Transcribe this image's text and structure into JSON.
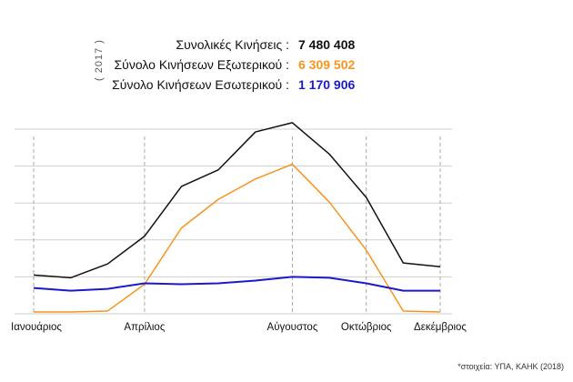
{
  "year_label": "( 2017 )",
  "stats": [
    {
      "label": "Συνολικές Κινήσεις :",
      "value": "7 480 408",
      "color": "#111111"
    },
    {
      "label": "Σύνολο Κινήσεων Εξωτερικού :",
      "value": "6 309 502",
      "color": "#f7941d"
    },
    {
      "label": "Σύνολο Κινήσεων Εσωτερικού :",
      "value": "1 170 906",
      "color": "#1a1acc"
    }
  ],
  "source": "*στοιχεία: ΥΠΑ, ΚΑΗΚ (2018)",
  "chart_data": {
    "type": "line",
    "x": [
      1,
      2,
      3,
      4,
      5,
      6,
      7,
      8,
      9,
      10,
      11,
      12
    ],
    "tick_labels": [
      {
        "x": 1,
        "label": "Ιανουάριος"
      },
      {
        "x": 4,
        "label": "Απρίλιος"
      },
      {
        "x": 8,
        "label": "Αύγουστος"
      },
      {
        "x": 10,
        "label": "Οκτώβριος"
      },
      {
        "x": 12,
        "label": "Δεκέμβριος"
      }
    ],
    "ylim": [
      0,
      1000000
    ],
    "grid": true,
    "series": [
      {
        "color": "#111111",
        "values": [
          210000,
          195000,
          270000,
          420000,
          690000,
          780000,
          985000,
          1035000,
          865000,
          630000,
          275000,
          255000
        ]
      },
      {
        "color": "#f7941d",
        "values": [
          10000,
          10000,
          15000,
          160000,
          465000,
          620000,
          730000,
          810000,
          605000,
          345000,
          15000,
          10000
        ]
      },
      {
        "color": "#1a1acc",
        "values": [
          140000,
          125000,
          135000,
          165000,
          160000,
          165000,
          180000,
          200000,
          195000,
          165000,
          125000,
          125000
        ]
      }
    ]
  }
}
